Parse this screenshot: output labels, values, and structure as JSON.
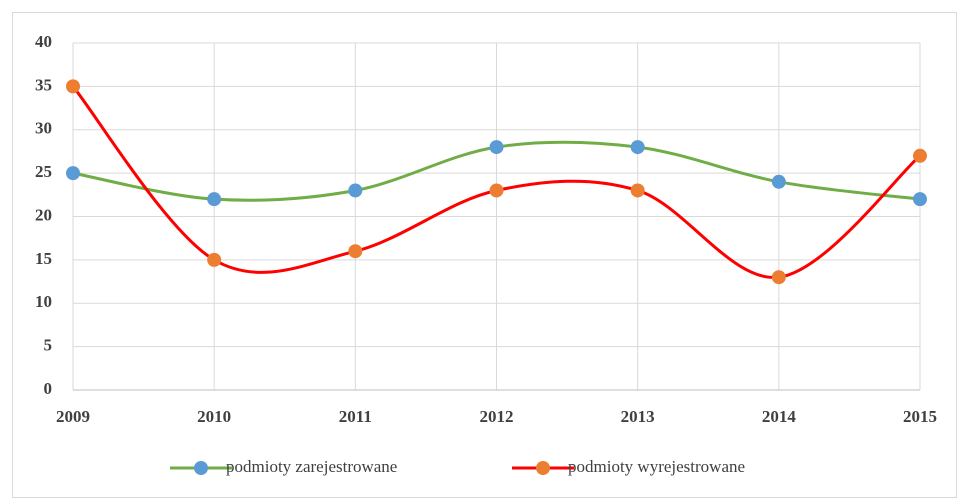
{
  "chart_data": {
    "type": "line",
    "x": [
      2009,
      2010,
      2011,
      2012,
      2013,
      2014,
      2015
    ],
    "xlim": [
      2009,
      2015
    ],
    "xticks": [
      2009,
      2010,
      2011,
      2012,
      2013,
      2014,
      2015
    ],
    "ylim": [
      0,
      40
    ],
    "yticks": [
      0,
      5,
      10,
      15,
      20,
      25,
      30,
      35,
      40
    ],
    "grid": true,
    "smooth": true,
    "legend": "bottom",
    "series": [
      {
        "name": "podmioty zarejestrowane",
        "color": "#70ad47",
        "marker_color": "#5b9bd5",
        "values": [
          25,
          22,
          23,
          28,
          28,
          24,
          22
        ]
      },
      {
        "name": "podmioty wyrejestrowane",
        "color": "#ff0000",
        "marker_color": "#ed7d31",
        "values": [
          35,
          15,
          16,
          23,
          23,
          13,
          27
        ]
      }
    ]
  }
}
